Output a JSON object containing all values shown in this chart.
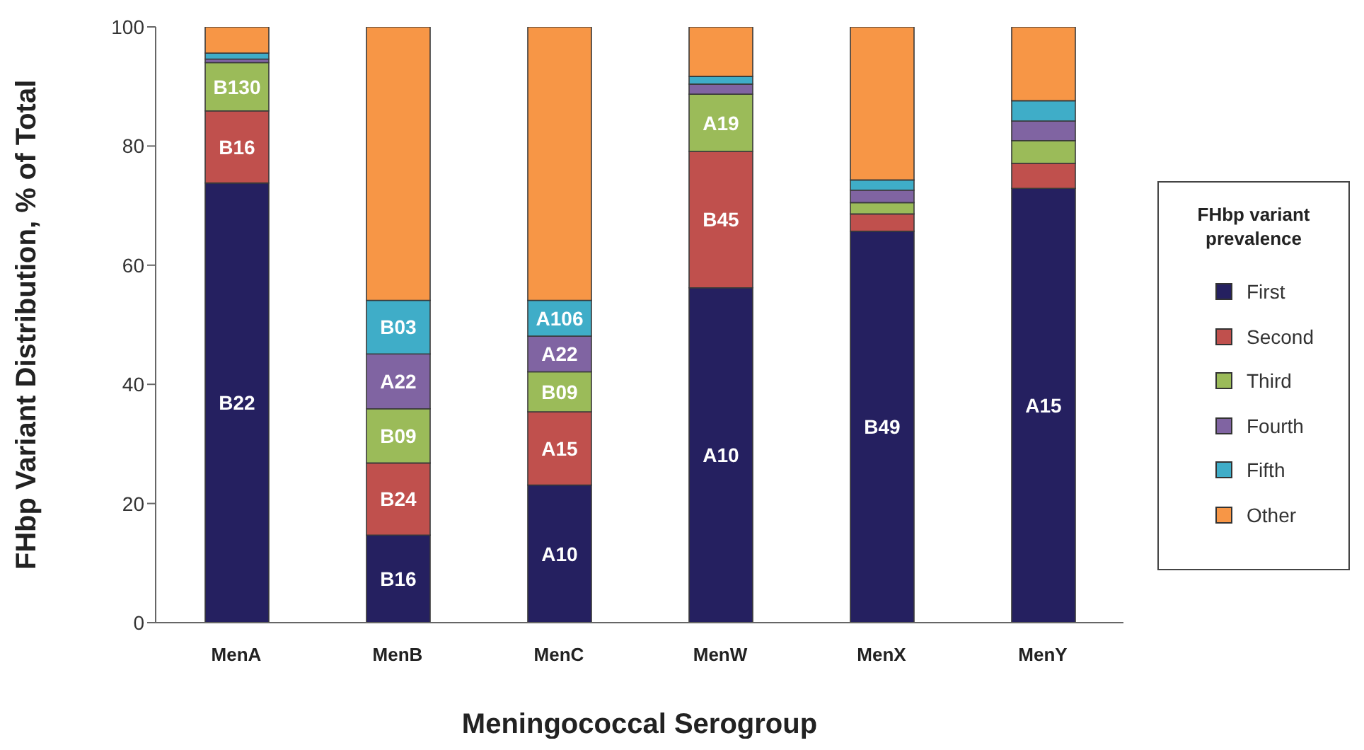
{
  "chart_data": {
    "type": "bar",
    "stacked": true,
    "xlabel": "Meningococcal Serogroup",
    "ylabel": "FHbp Variant Distribution, % of Total",
    "legend_title": "FHbp variant prevalence",
    "legend": "right",
    "categories": [
      "MenA",
      "MenB",
      "MenC",
      "MenW",
      "MenX",
      "MenY"
    ],
    "ylim": [
      0,
      100
    ],
    "yticks": [
      0,
      20,
      40,
      60,
      80,
      100
    ],
    "series": [
      {
        "name": "First",
        "color": "#252060",
        "values": [
          73.8,
          14.7,
          23.1,
          56.2,
          65.7,
          72.9
        ],
        "value_labels": [
          "B22",
          "B16",
          "A10",
          "A10",
          "B49",
          "A15"
        ]
      },
      {
        "name": "Second",
        "color": "#c0504d",
        "values": [
          12.1,
          12.1,
          12.3,
          22.9,
          2.9,
          4.2
        ],
        "value_labels": [
          "B16",
          "B24",
          "A15",
          "B45",
          null,
          null
        ]
      },
      {
        "name": "Third",
        "color": "#9bbb59",
        "values": [
          8.1,
          9.1,
          6.7,
          9.6,
          1.9,
          3.8
        ],
        "value_labels": [
          "B130",
          "B09",
          "B09",
          "A19",
          null,
          null
        ]
      },
      {
        "name": "Fourth",
        "color": "#8064a2",
        "values": [
          0.6,
          9.2,
          6.0,
          1.7,
          2.1,
          3.3
        ],
        "value_labels": [
          null,
          "A22",
          "A22",
          null,
          null,
          null
        ]
      },
      {
        "name": "Fifth",
        "color": "#3fadc8",
        "values": [
          1.0,
          9.0,
          6.0,
          1.3,
          1.7,
          3.4
        ],
        "value_labels": [
          null,
          "B03",
          "A106",
          null,
          null,
          null
        ]
      },
      {
        "name": "Other",
        "color": "#f79646",
        "values": [
          4.4,
          45.9,
          45.9,
          8.3,
          25.7,
          12.4
        ]
      }
    ]
  }
}
